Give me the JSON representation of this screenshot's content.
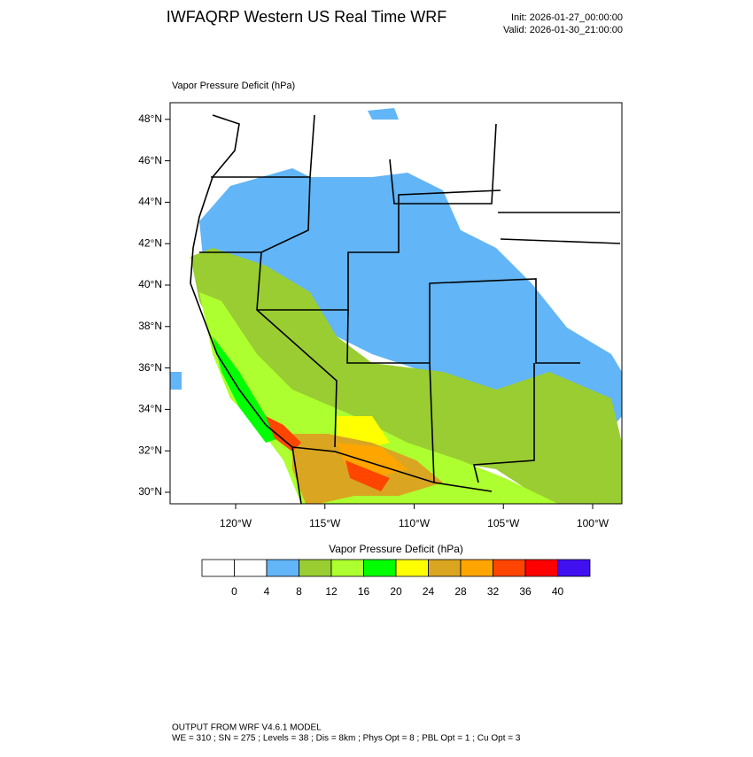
{
  "header": {
    "title": "IWFAQRP Western US Real Time WRF",
    "init": "Init: 2026-01-27_00:00:00",
    "valid": "Valid: 2026-01-30_21:00:00"
  },
  "map": {
    "label": "Vapor Pressure Deficit   (hPa)",
    "lat_ticks": [
      {
        "value": 48,
        "label": "48°N"
      },
      {
        "value": 46,
        "label": "46°N"
      },
      {
        "value": 44,
        "label": "44°N"
      },
      {
        "value": 42,
        "label": "42°N"
      },
      {
        "value": 40,
        "label": "40°N"
      },
      {
        "value": 38,
        "label": "38°N"
      },
      {
        "value": 36,
        "label": "36°N"
      },
      {
        "value": 34,
        "label": "34°N"
      },
      {
        "value": 32,
        "label": "32°N"
      },
      {
        "value": 30,
        "label": "30°N"
      }
    ],
    "lon_ticks": [
      {
        "value": -120,
        "label": "120°W"
      },
      {
        "value": -115,
        "label": "115°W"
      },
      {
        "value": -110,
        "label": "110°W"
      },
      {
        "value": -105,
        "label": "105°W"
      },
      {
        "value": -100,
        "label": "100°W"
      }
    ]
  },
  "colorbar": {
    "title": "Vapor Pressure Deficit  (hPa)",
    "levels": [
      0,
      4,
      8,
      12,
      16,
      20,
      24,
      28,
      32,
      36,
      40
    ],
    "colors": [
      "#ffffff",
      "#ffffff",
      "#62b5f6",
      "#9acd32",
      "#adff2f",
      "#00ff00",
      "#ffff00",
      "#daa520",
      "#ffa500",
      "#ff4500",
      "#ff0000",
      "#4010f0"
    ]
  },
  "footer": {
    "line1": "OUTPUT FROM WRF V4.6.1 MODEL",
    "line2": "WE = 310 ; SN = 275 ; Levels = 38 ; Dis = 8km ; Phys Opt = 8 ; PBL Opt = 1 ; Cu Opt = 3"
  }
}
